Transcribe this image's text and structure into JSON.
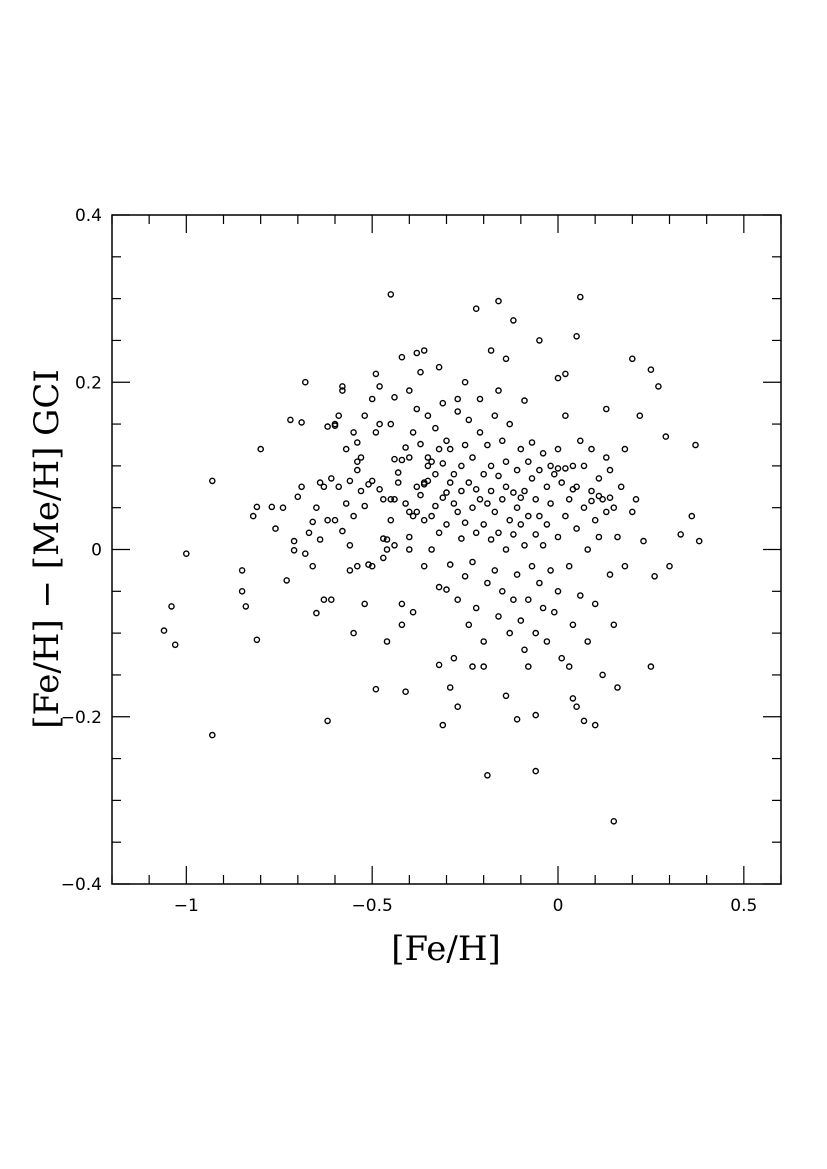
{
  "chart_data": {
    "type": "scatter",
    "xlabel": "[Fe/H]",
    "ylabel": "[Fe/H] − [Me/H] GCI",
    "xlim": [
      -1.2,
      0.6
    ],
    "ylim": [
      -0.4,
      0.4
    ],
    "x_ticks": [
      {
        "value": -1,
        "label": "−1"
      },
      {
        "value": -0.5,
        "label": "−0.5"
      },
      {
        "value": 0,
        "label": "0"
      },
      {
        "value": 0.5,
        "label": "0.5"
      }
    ],
    "y_ticks": [
      {
        "value": 0.4,
        "label": "0.4"
      },
      {
        "value": 0.2,
        "label": "0.2"
      },
      {
        "value": 0,
        "label": "0"
      },
      {
        "value": -0.2,
        "label": "−0.2"
      },
      {
        "value": -0.4,
        "label": "−0.4"
      }
    ],
    "x_minor_step": 0.1,
    "y_minor_step": 0.05,
    "grid": false,
    "marker": "open-circle",
    "points": [
      [
        -1.06,
        -0.097
      ],
      [
        -1.04,
        -0.068
      ],
      [
        -1.03,
        -0.114
      ],
      [
        -1.0,
        -0.005
      ],
      [
        -0.93,
        0.082
      ],
      [
        -0.93,
        -0.222
      ],
      [
        -0.85,
        -0.025
      ],
      [
        -0.85,
        -0.05
      ],
      [
        -0.84,
        -0.068
      ],
      [
        -0.82,
        0.04
      ],
      [
        -0.81,
        -0.108
      ],
      [
        -0.81,
        0.051
      ],
      [
        -0.8,
        0.12
      ],
      [
        -0.77,
        0.051
      ],
      [
        -0.76,
        0.025
      ],
      [
        -0.74,
        0.05
      ],
      [
        -0.73,
        -0.037
      ],
      [
        -0.72,
        0.155
      ],
      [
        -0.71,
        0.01
      ],
      [
        -0.71,
        -0.001
      ],
      [
        -0.7,
        0.063
      ],
      [
        -0.69,
        0.152
      ],
      [
        -0.69,
        0.075
      ],
      [
        -0.68,
        -0.005
      ],
      [
        -0.68,
        0.2
      ],
      [
        -0.67,
        0.02
      ],
      [
        -0.66,
        0.033
      ],
      [
        -0.66,
        -0.02
      ],
      [
        -0.65,
        0.05
      ],
      [
        -0.65,
        -0.076
      ],
      [
        -0.64,
        0.012
      ],
      [
        -0.64,
        0.08
      ],
      [
        -0.63,
        -0.06
      ],
      [
        -0.63,
        0.075
      ],
      [
        -0.62,
        -0.205
      ],
      [
        -0.62,
        0.147
      ],
      [
        -0.62,
        0.035
      ],
      [
        -0.61,
        0.085
      ],
      [
        -0.61,
        -0.06
      ],
      [
        -0.6,
        0.035
      ],
      [
        -0.6,
        0.148
      ],
      [
        -0.6,
        0.15
      ],
      [
        -0.59,
        0.075
      ],
      [
        -0.59,
        0.16
      ],
      [
        -0.58,
        0.195
      ],
      [
        -0.58,
        0.19
      ],
      [
        -0.58,
        0.022
      ],
      [
        -0.57,
        0.055
      ],
      [
        -0.57,
        0.12
      ],
      [
        -0.56,
        0.005
      ],
      [
        -0.56,
        0.082
      ],
      [
        -0.55,
        0.04
      ],
      [
        -0.55,
        0.14
      ],
      [
        -0.55,
        -0.1
      ],
      [
        -0.54,
        0.095
      ],
      [
        -0.54,
        0.128
      ],
      [
        -0.54,
        0.105
      ],
      [
        -0.53,
        0.07
      ],
      [
        -0.53,
        0.11
      ],
      [
        -0.52,
        0.16
      ],
      [
        -0.52,
        0.052
      ],
      [
        -0.52,
        -0.065
      ],
      [
        -0.51,
        0.078
      ],
      [
        -0.51,
        -0.018
      ],
      [
        -0.5,
        0.082
      ],
      [
        -0.5,
        -0.02
      ],
      [
        -0.5,
        0.18
      ],
      [
        -0.49,
        0.21
      ],
      [
        -0.49,
        0.14
      ],
      [
        -0.48,
        0.072
      ],
      [
        -0.48,
        0.15
      ],
      [
        -0.48,
        0.195
      ],
      [
        -0.47,
        0.06
      ],
      [
        -0.47,
        -0.01
      ],
      [
        -0.46,
        0.0
      ],
      [
        -0.46,
        0.012
      ],
      [
        -0.46,
        -0.11
      ],
      [
        -0.45,
        0.06
      ],
      [
        -0.45,
        0.15
      ],
      [
        -0.45,
        0.035
      ],
      [
        -0.44,
        0.005
      ],
      [
        -0.44,
        0.108
      ],
      [
        -0.44,
        0.182
      ],
      [
        -0.43,
        0.08
      ],
      [
        -0.43,
        0.092
      ],
      [
        -0.42,
        -0.09
      ],
      [
        -0.42,
        -0.065
      ],
      [
        -0.42,
        0.107
      ],
      [
        -0.41,
        0.055
      ],
      [
        -0.41,
        0.122
      ],
      [
        -0.41,
        -0.17
      ],
      [
        -0.4,
        0.045
      ],
      [
        -0.4,
        0.11
      ],
      [
        -0.4,
        0.015
      ],
      [
        -0.4,
        0.0
      ],
      [
        -0.39,
        0.14
      ],
      [
        -0.39,
        0.04
      ],
      [
        -0.39,
        -0.075
      ],
      [
        -0.38,
        0.075
      ],
      [
        -0.38,
        0.168
      ],
      [
        -0.38,
        0.045
      ],
      [
        -0.37,
        0.126
      ],
      [
        -0.37,
        0.065
      ],
      [
        -0.37,
        0.212
      ],
      [
        -0.36,
        -0.02
      ],
      [
        -0.36,
        0.035
      ],
      [
        -0.36,
        0.078
      ],
      [
        -0.35,
        0.1
      ],
      [
        -0.35,
        0.16
      ],
      [
        -0.35,
        0.082
      ],
      [
        -0.34,
        0.0
      ],
      [
        -0.34,
        0.105
      ],
      [
        -0.34,
        0.04
      ],
      [
        -0.33,
        0.145
      ],
      [
        -0.33,
        0.09
      ],
      [
        -0.33,
        0.052
      ],
      [
        -0.32,
        -0.045
      ],
      [
        -0.32,
        0.12
      ],
      [
        -0.32,
        0.02
      ],
      [
        -0.31,
        0.175
      ],
      [
        -0.31,
        0.103
      ],
      [
        -0.31,
        0.062
      ],
      [
        -0.3,
        -0.048
      ],
      [
        -0.3,
        0.13
      ],
      [
        -0.3,
        0.03
      ],
      [
        -0.29,
        0.08
      ],
      [
        -0.29,
        0.12
      ],
      [
        -0.29,
        -0.018
      ],
      [
        -0.28,
        0.09
      ],
      [
        -0.28,
        0.055
      ],
      [
        -0.28,
        -0.13
      ],
      [
        -0.27,
        0.165
      ],
      [
        -0.27,
        0.045
      ],
      [
        -0.27,
        -0.06
      ],
      [
        -0.26,
        0.1
      ],
      [
        -0.26,
        0.013
      ],
      [
        -0.26,
        0.07
      ],
      [
        -0.25,
        0.125
      ],
      [
        -0.25,
        0.032
      ],
      [
        -0.25,
        -0.032
      ],
      [
        -0.24,
        0.08
      ],
      [
        -0.24,
        -0.09
      ],
      [
        -0.24,
        0.155
      ],
      [
        -0.23,
        0.05
      ],
      [
        -0.23,
        0.11
      ],
      [
        -0.23,
        -0.015
      ],
      [
        -0.22,
        0.072
      ],
      [
        -0.22,
        0.02
      ],
      [
        -0.22,
        -0.07
      ],
      [
        -0.21,
        0.14
      ],
      [
        -0.21,
        0.06
      ],
      [
        -0.21,
        0.18
      ],
      [
        -0.2,
        0.09
      ],
      [
        -0.2,
        -0.11
      ],
      [
        -0.2,
        0.03
      ],
      [
        -0.19,
        0.125
      ],
      [
        -0.19,
        -0.04
      ],
      [
        -0.19,
        0.055
      ],
      [
        -0.18,
        0.1
      ],
      [
        -0.18,
        0.012
      ],
      [
        -0.18,
        0.07
      ],
      [
        -0.17,
        0.16
      ],
      [
        -0.17,
        -0.025
      ],
      [
        -0.17,
        0.045
      ],
      [
        -0.16,
        0.088
      ],
      [
        -0.16,
        -0.08
      ],
      [
        -0.16,
        0.02
      ],
      [
        -0.15,
        0.13
      ],
      [
        -0.15,
        0.06
      ],
      [
        -0.15,
        -0.05
      ],
      [
        -0.14,
        0.105
      ],
      [
        -0.14,
        0.0
      ],
      [
        -0.14,
        0.075
      ],
      [
        -0.13,
        0.035
      ],
      [
        -0.13,
        -0.1
      ],
      [
        -0.13,
        0.15
      ],
      [
        -0.12,
        0.068
      ],
      [
        -0.12,
        -0.06
      ],
      [
        -0.12,
        0.018
      ],
      [
        -0.11,
        0.095
      ],
      [
        -0.11,
        -0.03
      ],
      [
        -0.11,
        0.05
      ],
      [
        -0.1,
        0.12
      ],
      [
        -0.1,
        -0.085
      ],
      [
        -0.1,
        0.03
      ],
      [
        -0.09,
        0.07
      ],
      [
        -0.09,
        -0.12
      ],
      [
        -0.09,
        0.005
      ],
      [
        -0.08,
        0.105
      ],
      [
        -0.08,
        0.04
      ],
      [
        -0.08,
        -0.06
      ],
      [
        -0.07,
        0.085
      ],
      [
        -0.07,
        -0.02
      ],
      [
        -0.07,
        0.128
      ],
      [
        -0.06,
        0.06
      ],
      [
        -0.06,
        -0.1
      ],
      [
        -0.06,
        0.018
      ],
      [
        -0.05,
        0.095
      ],
      [
        -0.05,
        -0.04
      ],
      [
        -0.05,
        0.04
      ],
      [
        -0.04,
        0.115
      ],
      [
        -0.04,
        -0.07
      ],
      [
        -0.04,
        0.005
      ],
      [
        -0.03,
        0.075
      ],
      [
        -0.03,
        -0.11
      ],
      [
        -0.03,
        0.03
      ],
      [
        -0.02,
        0.1
      ],
      [
        -0.02,
        -0.025
      ],
      [
        -0.02,
        0.055
      ],
      [
        -0.01,
        0.09
      ],
      [
        -0.01,
        -0.075
      ],
      [
        0.0,
        0.12
      ],
      [
        0.0,
        0.015
      ],
      [
        0.0,
        -0.05
      ],
      [
        0.01,
        0.08
      ],
      [
        0.01,
        -0.13
      ],
      [
        0.02,
        0.04
      ],
      [
        0.02,
        0.16
      ],
      [
        0.03,
        0.06
      ],
      [
        0.03,
        -0.02
      ],
      [
        0.04,
        0.1
      ],
      [
        0.04,
        -0.09
      ],
      [
        0.05,
        0.025
      ],
      [
        0.05,
        0.075
      ],
      [
        0.06,
        0.13
      ],
      [
        0.06,
        -0.055
      ],
      [
        0.07,
        0.05
      ],
      [
        0.07,
        0.1
      ],
      [
        0.08,
        0.0
      ],
      [
        0.08,
        -0.11
      ],
      [
        0.09,
        0.07
      ],
      [
        0.09,
        0.12
      ],
      [
        0.1,
        0.035
      ],
      [
        0.1,
        -0.065
      ],
      [
        0.11,
        0.085
      ],
      [
        0.11,
        0.015
      ],
      [
        0.12,
        0.06
      ],
      [
        0.12,
        -0.15
      ],
      [
        0.13,
        0.11
      ],
      [
        0.13,
        0.045
      ],
      [
        0.14,
        -0.03
      ],
      [
        0.14,
        0.095
      ],
      [
        0.15,
        0.05
      ],
      [
        0.15,
        -0.09
      ],
      [
        0.16,
        0.015
      ],
      [
        0.17,
        0.075
      ],
      [
        0.18,
        -0.02
      ],
      [
        0.18,
        0.12
      ],
      [
        0.2,
        0.045
      ],
      [
        0.21,
        0.06
      ],
      [
        0.23,
        0.01
      ],
      [
        -0.45,
        0.305
      ],
      [
        -0.22,
        0.288
      ],
      [
        -0.16,
        0.297
      ],
      [
        -0.12,
        0.274
      ],
      [
        0.06,
        0.302
      ],
      [
        -0.05,
        0.25
      ],
      [
        0.05,
        0.255
      ],
      [
        -0.38,
        0.235
      ],
      [
        -0.36,
        0.238
      ],
      [
        -0.18,
        0.238
      ],
      [
        -0.14,
        0.228
      ],
      [
        0.2,
        0.228
      ],
      [
        0.25,
        0.215
      ],
      [
        -0.32,
        0.218
      ],
      [
        0.02,
        0.21
      ],
      [
        0.27,
        0.195
      ],
      [
        0.22,
        0.16
      ],
      [
        0.29,
        0.135
      ],
      [
        0.3,
        -0.02
      ],
      [
        0.33,
        0.018
      ],
      [
        0.36,
        0.04
      ],
      [
        0.37,
        0.125
      ],
      [
        0.38,
        0.01
      ],
      [
        0.26,
        -0.032
      ],
      [
        0.25,
        -0.14
      ],
      [
        0.15,
        -0.325
      ],
      [
        -0.06,
        -0.265
      ],
      [
        -0.19,
        -0.27
      ],
      [
        -0.31,
        -0.21
      ],
      [
        0.1,
        -0.21
      ],
      [
        0.07,
        -0.205
      ],
      [
        -0.06,
        -0.198
      ],
      [
        -0.11,
        -0.203
      ],
      [
        0.05,
        -0.188
      ],
      [
        -0.27,
        -0.188
      ],
      [
        -0.14,
        -0.175
      ],
      [
        -0.49,
        -0.167
      ],
      [
        0.16,
        -0.165
      ],
      [
        0.04,
        -0.178
      ],
      [
        -0.29,
        -0.165
      ],
      [
        -0.56,
        -0.025
      ],
      [
        -0.54,
        -0.02
      ],
      [
        -0.47,
        0.013
      ],
      [
        0.0,
        0.097
      ],
      [
        0.02,
        0.097
      ],
      [
        0.04,
        0.072
      ],
      [
        0.09,
        0.058
      ],
      [
        0.11,
        0.064
      ],
      [
        0.14,
        0.062
      ],
      [
        -0.1,
        0.062
      ],
      [
        -0.3,
        0.068
      ],
      [
        -0.35,
        0.11
      ],
      [
        -0.36,
        0.08
      ],
      [
        -0.44,
        0.06
      ],
      [
        -0.2,
        -0.14
      ],
      [
        -0.23,
        -0.14
      ],
      [
        -0.32,
        -0.138
      ],
      [
        -0.08,
        -0.14
      ],
      [
        0.03,
        -0.14
      ],
      [
        -0.16,
        0.19
      ],
      [
        -0.27,
        0.18
      ],
      [
        -0.4,
        0.19
      ],
      [
        -0.42,
        0.23
      ],
      [
        0.0,
        0.205
      ],
      [
        -0.09,
        0.178
      ],
      [
        -0.25,
        0.2
      ],
      [
        0.13,
        0.168
      ]
    ]
  }
}
